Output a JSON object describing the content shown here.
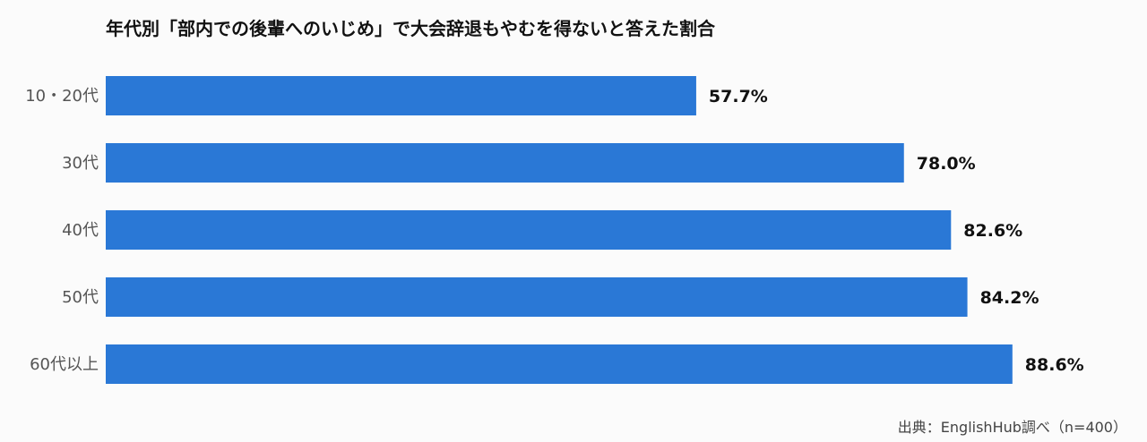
{
  "chart_data": {
    "type": "bar",
    "orientation": "horizontal",
    "title": "年代別「部内での後輩へのいじめ」で大会辞退もやむを得ないと答えた割合",
    "categories": [
      "10・20代",
      "30代",
      "40代",
      "50代",
      "60代以上"
    ],
    "values": [
      57.7,
      78.0,
      82.6,
      84.2,
      88.6
    ],
    "value_labels": [
      "57.7%",
      "78.0%",
      "82.6%",
      "84.2%",
      "88.6%"
    ],
    "unit": "%",
    "xlim": [
      0,
      100
    ],
    "grid": false,
    "legend": "none",
    "bar_color": "#2a78d6",
    "source": "出典：EnglishHub調べ（n=400）"
  }
}
